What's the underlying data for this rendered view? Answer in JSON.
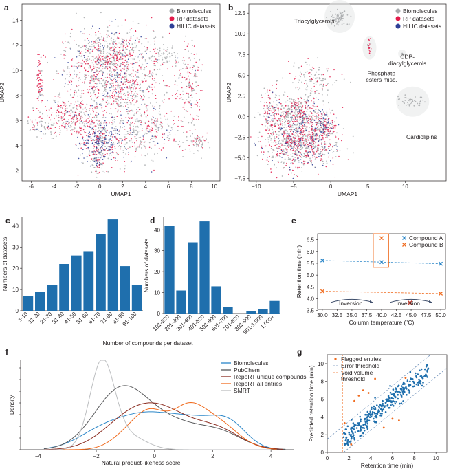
{
  "figure": {
    "panel_labels": [
      "a",
      "b",
      "c",
      "d",
      "e",
      "f",
      "g"
    ]
  },
  "colors": {
    "grey": "#a7a9ac",
    "red": "#e31a4a",
    "blue": "#2e3f96",
    "bar": "#1f6fad",
    "orange": "#f06b1e",
    "lightblue": "#2a86c8"
  },
  "chart_data": [
    {
      "id": "a",
      "type": "scatter",
      "title": "",
      "xlabel": "UMAP1",
      "ylabel": "UMAP2",
      "xlim": [
        -6.8,
        10.5
      ],
      "ylim": [
        1.2,
        15.3
      ],
      "xticks": [
        -6,
        -4,
        -2,
        0,
        2,
        4,
        6,
        8,
        10
      ],
      "yticks": [
        2,
        4,
        6,
        8,
        10,
        12,
        14
      ],
      "legend": [
        "Biomolecules",
        "RP datasets",
        "HILIC datasets"
      ],
      "legend_colors": [
        "#a7a9ac",
        "#e31a4a",
        "#2e3f96"
      ],
      "legend_position": "top-right",
      "clusters": [
        {
          "name": "core",
          "x": 1.5,
          "y": 9.2,
          "sx": 2.2,
          "sy": 1.8,
          "n": 900,
          "mix": [
            0.5,
            0.4,
            0.1
          ]
        },
        {
          "name": "upper",
          "x": 0.5,
          "y": 11.2,
          "sx": 1.6,
          "sy": 1.1,
          "n": 450,
          "mix": [
            0.55,
            0.35,
            0.1
          ]
        },
        {
          "name": "left-arm",
          "x": -2.4,
          "y": 6.3,
          "sx": 1.3,
          "sy": 0.7,
          "n": 260,
          "mix": [
            0.35,
            0.6,
            0.05
          ]
        },
        {
          "name": "lower-center",
          "x": 0.0,
          "y": 4.4,
          "sx": 0.9,
          "sy": 0.8,
          "n": 380,
          "mix": [
            0.3,
            0.3,
            0.4
          ]
        },
        {
          "name": "lower-right",
          "x": 4.0,
          "y": 5.0,
          "sx": 1.8,
          "sy": 1.1,
          "n": 300,
          "mix": [
            0.55,
            0.35,
            0.1
          ]
        },
        {
          "name": "far-left",
          "x": -5.0,
          "y": 5.4,
          "sx": 0.6,
          "sy": 0.4,
          "n": 60,
          "mix": [
            0.6,
            0.2,
            0.2
          ]
        },
        {
          "name": "left-strip",
          "x": -5.3,
          "y": 9.0,
          "sx": 0.15,
          "sy": 1.2,
          "n": 80,
          "mix": [
            0.2,
            0.75,
            0.05
          ]
        },
        {
          "name": "right-strip",
          "x": 7.8,
          "y": 8.8,
          "sx": 0.5,
          "sy": 1.7,
          "n": 160,
          "mix": [
            0.4,
            0.55,
            0.05
          ]
        },
        {
          "name": "top-right-cloud",
          "x": 5.6,
          "y": 11.2,
          "sx": 0.6,
          "sy": 0.5,
          "n": 60,
          "mix": [
            0.9,
            0.1,
            0.0
          ]
        },
        {
          "name": "bottom-tail",
          "x": -0.2,
          "y": 2.8,
          "sx": 0.3,
          "sy": 0.4,
          "n": 80,
          "mix": [
            0.5,
            0.3,
            0.2
          ]
        },
        {
          "name": "right-tail",
          "x": 8.6,
          "y": 4.3,
          "sx": 0.4,
          "sy": 0.4,
          "n": 60,
          "mix": [
            0.7,
            0.3,
            0.0
          ]
        }
      ]
    },
    {
      "id": "b",
      "type": "scatter",
      "title": "",
      "xlabel": "UMAP1",
      "ylabel": "UMAP2",
      "xlim": [
        -11,
        15.5
      ],
      "ylim": [
        -7.8,
        13.6
      ],
      "xticks": [
        -10,
        -5,
        0,
        5,
        10
      ],
      "yticks": [
        -7.5,
        -5.0,
        -2.5,
        0.0,
        2.5,
        5.0,
        7.5,
        10.0,
        12.5
      ],
      "ytick_labels": [
        "−7.5",
        "−5.0",
        "−2.5",
        "0.0",
        "2.5",
        "5.0",
        "7.5",
        "10.0",
        "12.5"
      ],
      "xtick_labels": [
        "−10",
        "−5",
        "0",
        "5",
        "10"
      ],
      "legend": [
        "Biomolecules",
        "RP datasets",
        "HILIC datasets"
      ],
      "legend_colors": [
        "#a7a9ac",
        "#e31a4a",
        "#2e3f96"
      ],
      "legend_position": "top-right",
      "annotations": [
        {
          "text": "Triacylglycerols",
          "x": -2.2,
          "y": 11.3
        },
        {
          "text": "Phosphate",
          "x": 6.8,
          "y": 5.0
        },
        {
          "text": "esters misc.",
          "x": 6.8,
          "y": 4.2
        },
        {
          "text": "CDP-",
          "x": 10.3,
          "y": 7.0
        },
        {
          "text": "diacylglycerols",
          "x": 10.3,
          "y": 6.2
        },
        {
          "text": "Cardiolipins",
          "x": 12.2,
          "y": -2.7
        }
      ],
      "clusters": [
        {
          "name": "main",
          "x": -4.0,
          "y": -3.0,
          "sx": 2.3,
          "sy": 1.6,
          "n": 1000,
          "mix": [
            0.45,
            0.4,
            0.15
          ]
        },
        {
          "name": "upper-main",
          "x": -4.5,
          "y": 0.6,
          "sx": 1.5,
          "sy": 1.0,
          "n": 350,
          "mix": [
            0.55,
            0.35,
            0.1
          ]
        },
        {
          "name": "left",
          "x": -8.0,
          "y": 0.5,
          "sx": 0.7,
          "sy": 1.2,
          "n": 120,
          "mix": [
            0.5,
            0.45,
            0.05
          ]
        },
        {
          "name": "right",
          "x": -0.8,
          "y": -1.0,
          "sx": 0.7,
          "sy": 0.8,
          "n": 160,
          "mix": [
            0.3,
            0.35,
            0.35
          ]
        },
        {
          "name": "mid-strands",
          "x": -2.5,
          "y": 4.6,
          "sx": 1.7,
          "sy": 0.9,
          "n": 120,
          "mix": [
            0.75,
            0.25,
            0.0
          ]
        },
        {
          "name": "triacylglycerols",
          "x": 1.2,
          "y": 12.1,
          "sx": 0.6,
          "sy": 0.5,
          "n": 70,
          "mix": [
            1.0,
            0.0,
            0.0
          ]
        },
        {
          "name": "phosphate",
          "x": 5.2,
          "y": 8.3,
          "sx": 0.12,
          "sy": 0.5,
          "n": 22,
          "mix": [
            0.3,
            0.7,
            0.0
          ]
        },
        {
          "name": "cdp",
          "x": 9.6,
          "y": 7.6,
          "sx": 0.12,
          "sy": 0.1,
          "n": 5,
          "mix": [
            1.0,
            0.0,
            0.0
          ]
        },
        {
          "name": "cardiolipins",
          "x": 11.0,
          "y": 1.8,
          "sx": 0.9,
          "sy": 0.3,
          "n": 45,
          "mix": [
            1.0,
            0.0,
            0.0
          ]
        }
      ]
    },
    {
      "id": "c",
      "type": "bar",
      "categories": [
        "1-10",
        "11-20",
        "21-30",
        "31-40",
        "41-50",
        "51-60",
        "61-70",
        "71-80",
        "81-90",
        "91-100"
      ],
      "values": [
        7,
        9,
        12,
        22,
        26,
        28,
        36,
        43,
        21,
        12
      ],
      "xlabel": "",
      "ylabel": "Numbers of datasets",
      "ylim": [
        0,
        44
      ],
      "yticks": [
        0,
        10,
        20,
        30,
        40
      ]
    },
    {
      "id": "d",
      "type": "bar",
      "categories": [
        "101-200",
        "201-300",
        "301-400",
        "401-500",
        "501-600",
        "601-700",
        "701-800",
        "801-900",
        "901-1,000",
        "1,000+"
      ],
      "values": [
        42,
        11,
        34,
        44,
        13,
        3,
        0,
        1,
        2,
        6
      ],
      "xlabel": "",
      "ylabel": "Numbers of datasets",
      "ylim": [
        0,
        46
      ],
      "yticks": [
        0,
        10,
        20,
        30,
        40
      ]
    },
    {
      "id": "cd_shared",
      "xlabel": "Number of compounds per dataset"
    },
    {
      "id": "e",
      "type": "line",
      "xlabel": "Column temperature (ºC)",
      "ylabel": "Retention time (min)",
      "xlim": [
        29.2,
        50.8
      ],
      "ylim": [
        3.55,
        6.75
      ],
      "xticks": [
        30.0,
        32.5,
        35.0,
        37.5,
        40.0,
        42.5,
        45.0,
        47.5,
        50.0
      ],
      "xtick_labels": [
        "30.0",
        "32.5",
        "35.0",
        "37.5",
        "40.0",
        "42.5",
        "45.0",
        "47.5",
        "50.0"
      ],
      "yticks": [
        3.5,
        4.0,
        4.5,
        5.0,
        5.5,
        6.0,
        6.5
      ],
      "ytick_labels": [
        "3.5",
        "4.0",
        "4.5",
        "5.0",
        "5.5",
        "6.0",
        "6.5"
      ],
      "legend_position": "top-right",
      "series": [
        {
          "name": "Compound A",
          "color": "#2a86c8",
          "x": [
            30,
            40,
            50
          ],
          "y": [
            5.62,
            5.55,
            5.48
          ]
        },
        {
          "name": "Compound B",
          "color": "#f06b1e",
          "x": [
            30,
            40,
            50
          ],
          "y": [
            4.32,
            6.57,
            4.22
          ]
        }
      ],
      "annotations": [
        {
          "text": "Inversion",
          "x": 34.8,
          "y": 3.78
        },
        {
          "text": "Inversion",
          "x": 44.5,
          "y": 3.78
        }
      ],
      "highlight_box": {
        "x": [
          38.6,
          41.2
        ],
        "y": [
          5.33,
          6.75
        ]
      },
      "cross_point": {
        "x": 44.8,
        "y": 3.83
      }
    },
    {
      "id": "f",
      "type": "line",
      "xlabel": "Natural product-likeness score",
      "ylabel": "Density",
      "xlim": [
        -4.6,
        4.8
      ],
      "xticks": [
        -4,
        -2,
        0,
        2,
        4
      ],
      "xtick_labels": [
        "−4",
        "−2",
        "0",
        "2",
        "4"
      ],
      "legend_position": "top-right",
      "series": [
        {
          "name": "Biomolecules",
          "color": "#2a86c8"
        },
        {
          "name": "PubChem",
          "color": "#58595b"
        },
        {
          "name": "RepoRT unique compounds",
          "color": "#8a2b1f"
        },
        {
          "name": "RepoRT all entries",
          "color": "#f06b1e"
        },
        {
          "name": "SMRT",
          "color": "#bcbec0"
        }
      ]
    },
    {
      "id": "g",
      "type": "scatter",
      "xlabel": "Retention time (min)",
      "ylabel": "Predicted retention time (min)",
      "xlim": [
        0,
        11
      ],
      "ylim": [
        0,
        11
      ],
      "xticks": [
        0,
        2,
        4,
        6,
        8,
        10
      ],
      "yticks": [
        0,
        2,
        4,
        6,
        8,
        10
      ],
      "legend_position": "top-left",
      "legend": [
        "Flagged entries",
        "Error threshold",
        "Void volume threshold"
      ]
    }
  ],
  "legend_g": {
    "flagged": "Flagged entries",
    "error": "Error threshold",
    "void1": "Void volume",
    "void2": "threshold"
  }
}
